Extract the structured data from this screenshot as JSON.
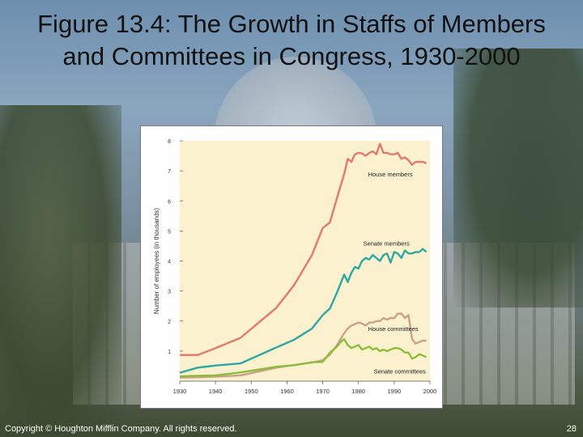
{
  "slide": {
    "title": "Figure 13.4: The Growth in Staffs of Members and Committees in Congress, 1930-2000",
    "footer": "Copyright © Houghton Mifflin Company. All rights reserved.",
    "page_number": "28"
  },
  "chart_data": {
    "type": "line",
    "title": "",
    "xlabel": "",
    "ylabel": "Number of employees (in thousands)",
    "xlim": [
      1930,
      2000
    ],
    "ylim": [
      0,
      8
    ],
    "x_ticks": [
      "1930",
      "1940",
      "1950",
      "1960",
      "1970",
      "1980",
      "1990",
      "2000"
    ],
    "y_ticks": [
      "1",
      "2",
      "3",
      "4",
      "5",
      "6",
      "7",
      "8"
    ],
    "grid": false,
    "plot_background": "#fbf1cf",
    "series": [
      {
        "name": "House members",
        "color": "#e07a6b",
        "points": [
          [
            1930,
            0.87
          ],
          [
            1935,
            0.87
          ],
          [
            1940,
            1.1
          ],
          [
            1947,
            1.44
          ],
          [
            1957,
            2.44
          ],
          [
            1962,
            3.2
          ],
          [
            1967,
            4.2
          ],
          [
            1970,
            5.1
          ],
          [
            1972,
            5.28
          ],
          [
            1974,
            6.1
          ],
          [
            1976,
            6.9
          ],
          [
            1977,
            7.4
          ],
          [
            1978,
            7.3
          ],
          [
            1979,
            7.55
          ],
          [
            1980,
            7.6
          ],
          [
            1981,
            7.58
          ],
          [
            1982,
            7.5
          ],
          [
            1983,
            7.6
          ],
          [
            1984,
            7.65
          ],
          [
            1985,
            7.55
          ],
          [
            1986,
            7.9
          ],
          [
            1987,
            7.6
          ],
          [
            1988,
            7.6
          ],
          [
            1989,
            7.55
          ],
          [
            1990,
            7.55
          ],
          [
            1991,
            7.6
          ],
          [
            1992,
            7.4
          ],
          [
            1993,
            7.45
          ],
          [
            1994,
            7.35
          ],
          [
            1995,
            7.2
          ],
          [
            1996,
            7.3
          ],
          [
            1997,
            7.3
          ],
          [
            1998,
            7.3
          ],
          [
            1999,
            7.25
          ]
        ]
      },
      {
        "name": "Senate members",
        "color": "#2ea8a3",
        "points": [
          [
            1930,
            0.28
          ],
          [
            1935,
            0.45
          ],
          [
            1940,
            0.52
          ],
          [
            1947,
            0.59
          ],
          [
            1957,
            1.12
          ],
          [
            1962,
            1.38
          ],
          [
            1967,
            1.75
          ],
          [
            1970,
            2.2
          ],
          [
            1972,
            2.42
          ],
          [
            1974,
            2.95
          ],
          [
            1976,
            3.55
          ],
          [
            1977,
            3.3
          ],
          [
            1978,
            3.6
          ],
          [
            1979,
            3.8
          ],
          [
            1980,
            3.75
          ],
          [
            1981,
            4.0
          ],
          [
            1982,
            4.1
          ],
          [
            1983,
            4.05
          ],
          [
            1984,
            4.2
          ],
          [
            1985,
            4.1
          ],
          [
            1986,
            4.0
          ],
          [
            1987,
            4.2
          ],
          [
            1988,
            4.25
          ],
          [
            1989,
            3.95
          ],
          [
            1990,
            4.3
          ],
          [
            1991,
            4.25
          ],
          [
            1992,
            4.1
          ],
          [
            1993,
            4.35
          ],
          [
            1994,
            4.25
          ],
          [
            1995,
            4.25
          ],
          [
            1996,
            4.3
          ],
          [
            1997,
            4.3
          ],
          [
            1998,
            4.4
          ],
          [
            1999,
            4.3
          ]
        ]
      },
      {
        "name": "House committees",
        "color": "#c9a08a",
        "points": [
          [
            1930,
            0.12
          ],
          [
            1935,
            0.13
          ],
          [
            1940,
            0.15
          ],
          [
            1947,
            0.19
          ],
          [
            1957,
            0.45
          ],
          [
            1962,
            0.54
          ],
          [
            1967,
            0.62
          ],
          [
            1970,
            0.7
          ],
          [
            1972,
            0.88
          ],
          [
            1974,
            1.2
          ],
          [
            1976,
            1.6
          ],
          [
            1977,
            1.75
          ],
          [
            1978,
            1.85
          ],
          [
            1979,
            1.9
          ],
          [
            1980,
            1.95
          ],
          [
            1981,
            1.92
          ],
          [
            1982,
            1.85
          ],
          [
            1983,
            1.95
          ],
          [
            1984,
            1.95
          ],
          [
            1985,
            2.0
          ],
          [
            1986,
            2.0
          ],
          [
            1987,
            2.1
          ],
          [
            1988,
            2.05
          ],
          [
            1989,
            2.1
          ],
          [
            1990,
            2.1
          ],
          [
            1991,
            2.25
          ],
          [
            1992,
            2.25
          ],
          [
            1993,
            2.1
          ],
          [
            1994,
            2.2
          ],
          [
            1995,
            1.4
          ],
          [
            1996,
            1.25
          ],
          [
            1997,
            1.3
          ],
          [
            1998,
            1.35
          ],
          [
            1999,
            1.35
          ]
        ]
      },
      {
        "name": "Senate committees",
        "color": "#8dbd3a",
        "points": [
          [
            1930,
            0.16
          ],
          [
            1935,
            0.18
          ],
          [
            1940,
            0.19
          ],
          [
            1947,
            0.29
          ],
          [
            1957,
            0.48
          ],
          [
            1962,
            0.53
          ],
          [
            1967,
            0.63
          ],
          [
            1970,
            0.64
          ],
          [
            1972,
            0.95
          ],
          [
            1974,
            1.15
          ],
          [
            1975,
            1.3
          ],
          [
            1976,
            1.4
          ],
          [
            1977,
            1.2
          ],
          [
            1978,
            1.1
          ],
          [
            1979,
            1.15
          ],
          [
            1980,
            1.2
          ],
          [
            1981,
            1.05
          ],
          [
            1982,
            1.1
          ],
          [
            1983,
            1.15
          ],
          [
            1984,
            1.05
          ],
          [
            1985,
            1.1
          ],
          [
            1986,
            1.0
          ],
          [
            1987,
            1.05
          ],
          [
            1988,
            1.0
          ],
          [
            1989,
            1.05
          ],
          [
            1990,
            1.1
          ],
          [
            1991,
            1.1
          ],
          [
            1992,
            1.05
          ],
          [
            1993,
            0.95
          ],
          [
            1994,
            0.95
          ],
          [
            1995,
            0.75
          ],
          [
            1996,
            0.8
          ],
          [
            1997,
            0.9
          ],
          [
            1998,
            0.85
          ],
          [
            1999,
            0.8
          ]
        ]
      }
    ]
  }
}
